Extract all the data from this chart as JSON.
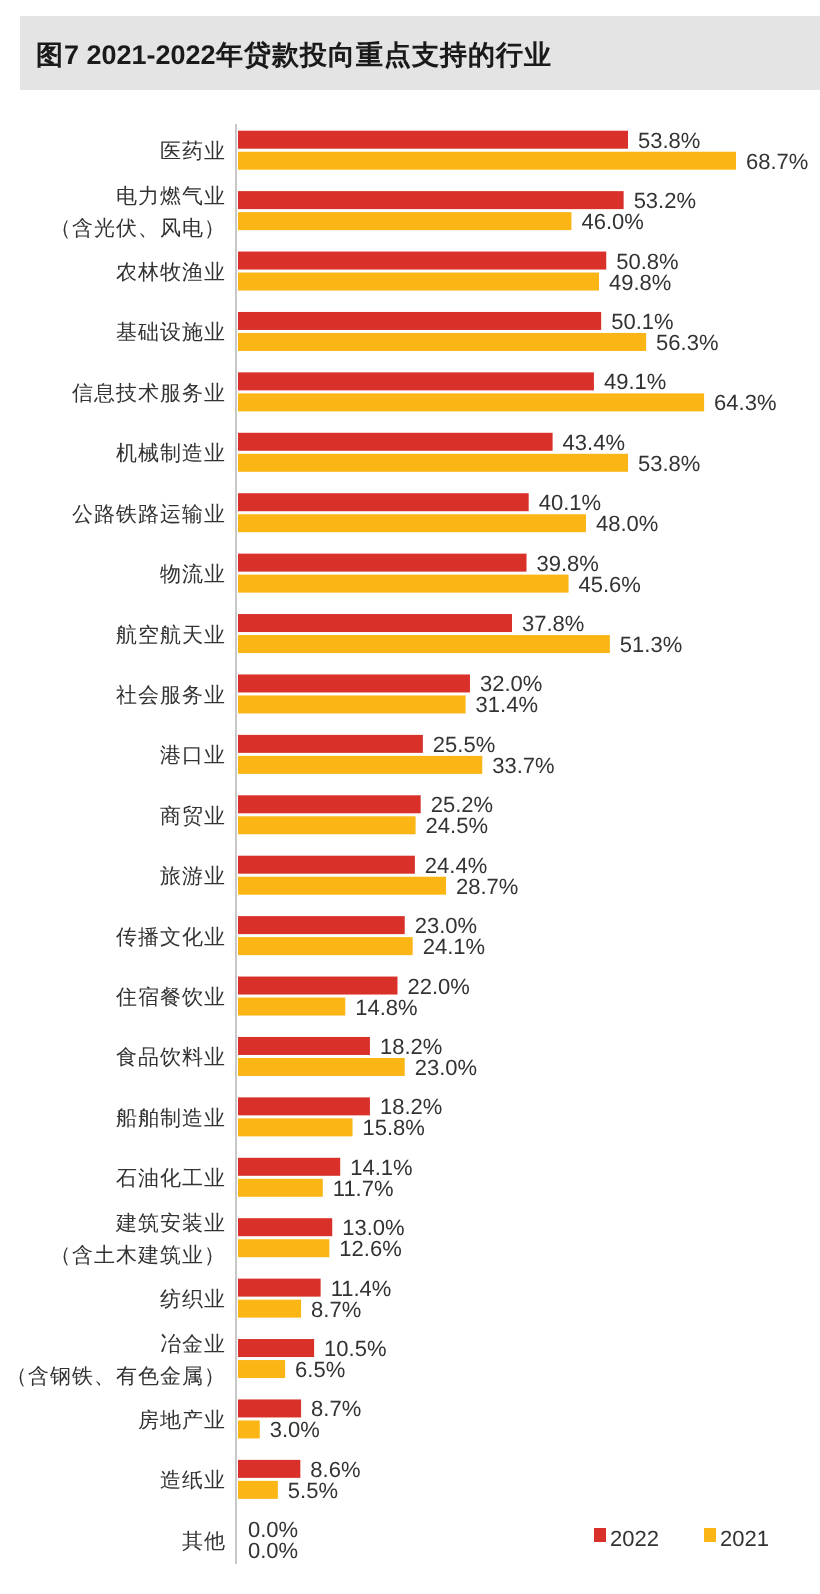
{
  "chart_data": {
    "type": "bar",
    "orientation": "horizontal",
    "title": "图7  2021-2022年贷款投向重点支持的行业",
    "categories": [
      "医药业",
      "电力燃气业（含光伏、风电）",
      "农林牧渔业",
      "基础设施业",
      "信息技术服务业",
      "机械制造业",
      "公路铁路运输业",
      "物流业",
      "航空航天业",
      "社会服务业",
      "港口业",
      "商贸业",
      "旅游业",
      "传播文化业",
      "住宿餐饮业",
      "食品饮料业",
      "船舶制造业",
      "石油化工业",
      "建筑安装业（含土木建筑业）",
      "纺织业",
      "冶金业（含钢铁、有色金属）",
      "房地产业",
      "造纸业",
      "其他"
    ],
    "series": [
      {
        "name": "2022",
        "color": "#d9312a",
        "values": [
          53.8,
          53.2,
          50.8,
          50.1,
          49.1,
          43.4,
          40.1,
          39.8,
          37.8,
          32.0,
          25.5,
          25.2,
          24.4,
          23.0,
          22.0,
          18.2,
          18.2,
          14.1,
          13.0,
          11.4,
          10.5,
          8.7,
          8.6,
          0.0
        ],
        "value_labels": [
          "53.8%",
          "53.2%",
          "50.8%",
          "50.1%",
          "49.1%",
          "43.4%",
          "40.1%",
          "39.8%",
          "37.8%",
          "32.0%",
          "25.5%",
          "25.2%",
          "24.4%",
          "23.0%",
          "22.0%",
          "18.2%",
          "18.2%",
          "14.1%",
          "13.0%",
          "11.4%",
          "10.5%",
          "8.7%",
          "8.6%",
          "0.0%"
        ]
      },
      {
        "name": "2021",
        "color": "#fbb616",
        "values": [
          68.7,
          46.0,
          49.8,
          56.3,
          64.3,
          53.8,
          48.0,
          45.6,
          51.3,
          31.4,
          33.7,
          24.5,
          28.7,
          24.1,
          14.8,
          23.0,
          15.8,
          11.7,
          12.6,
          8.7,
          6.5,
          3.0,
          5.5,
          0.0
        ],
        "value_labels": [
          "68.7%",
          "46.0%",
          "49.8%",
          "56.3%",
          "64.3%",
          "53.8%",
          "48.0%",
          "45.6%",
          "51.3%",
          "31.4%",
          "33.7%",
          "24.5%",
          "28.7%",
          "24.1%",
          "14.8%",
          "23.0%",
          "15.8%",
          "11.7%",
          "12.6%",
          "8.7%",
          "6.5%",
          "3.0%",
          "5.5%",
          "0.0%"
        ]
      }
    ],
    "tick_labels": "y",
    "legend": "bottom right"
  }
}
